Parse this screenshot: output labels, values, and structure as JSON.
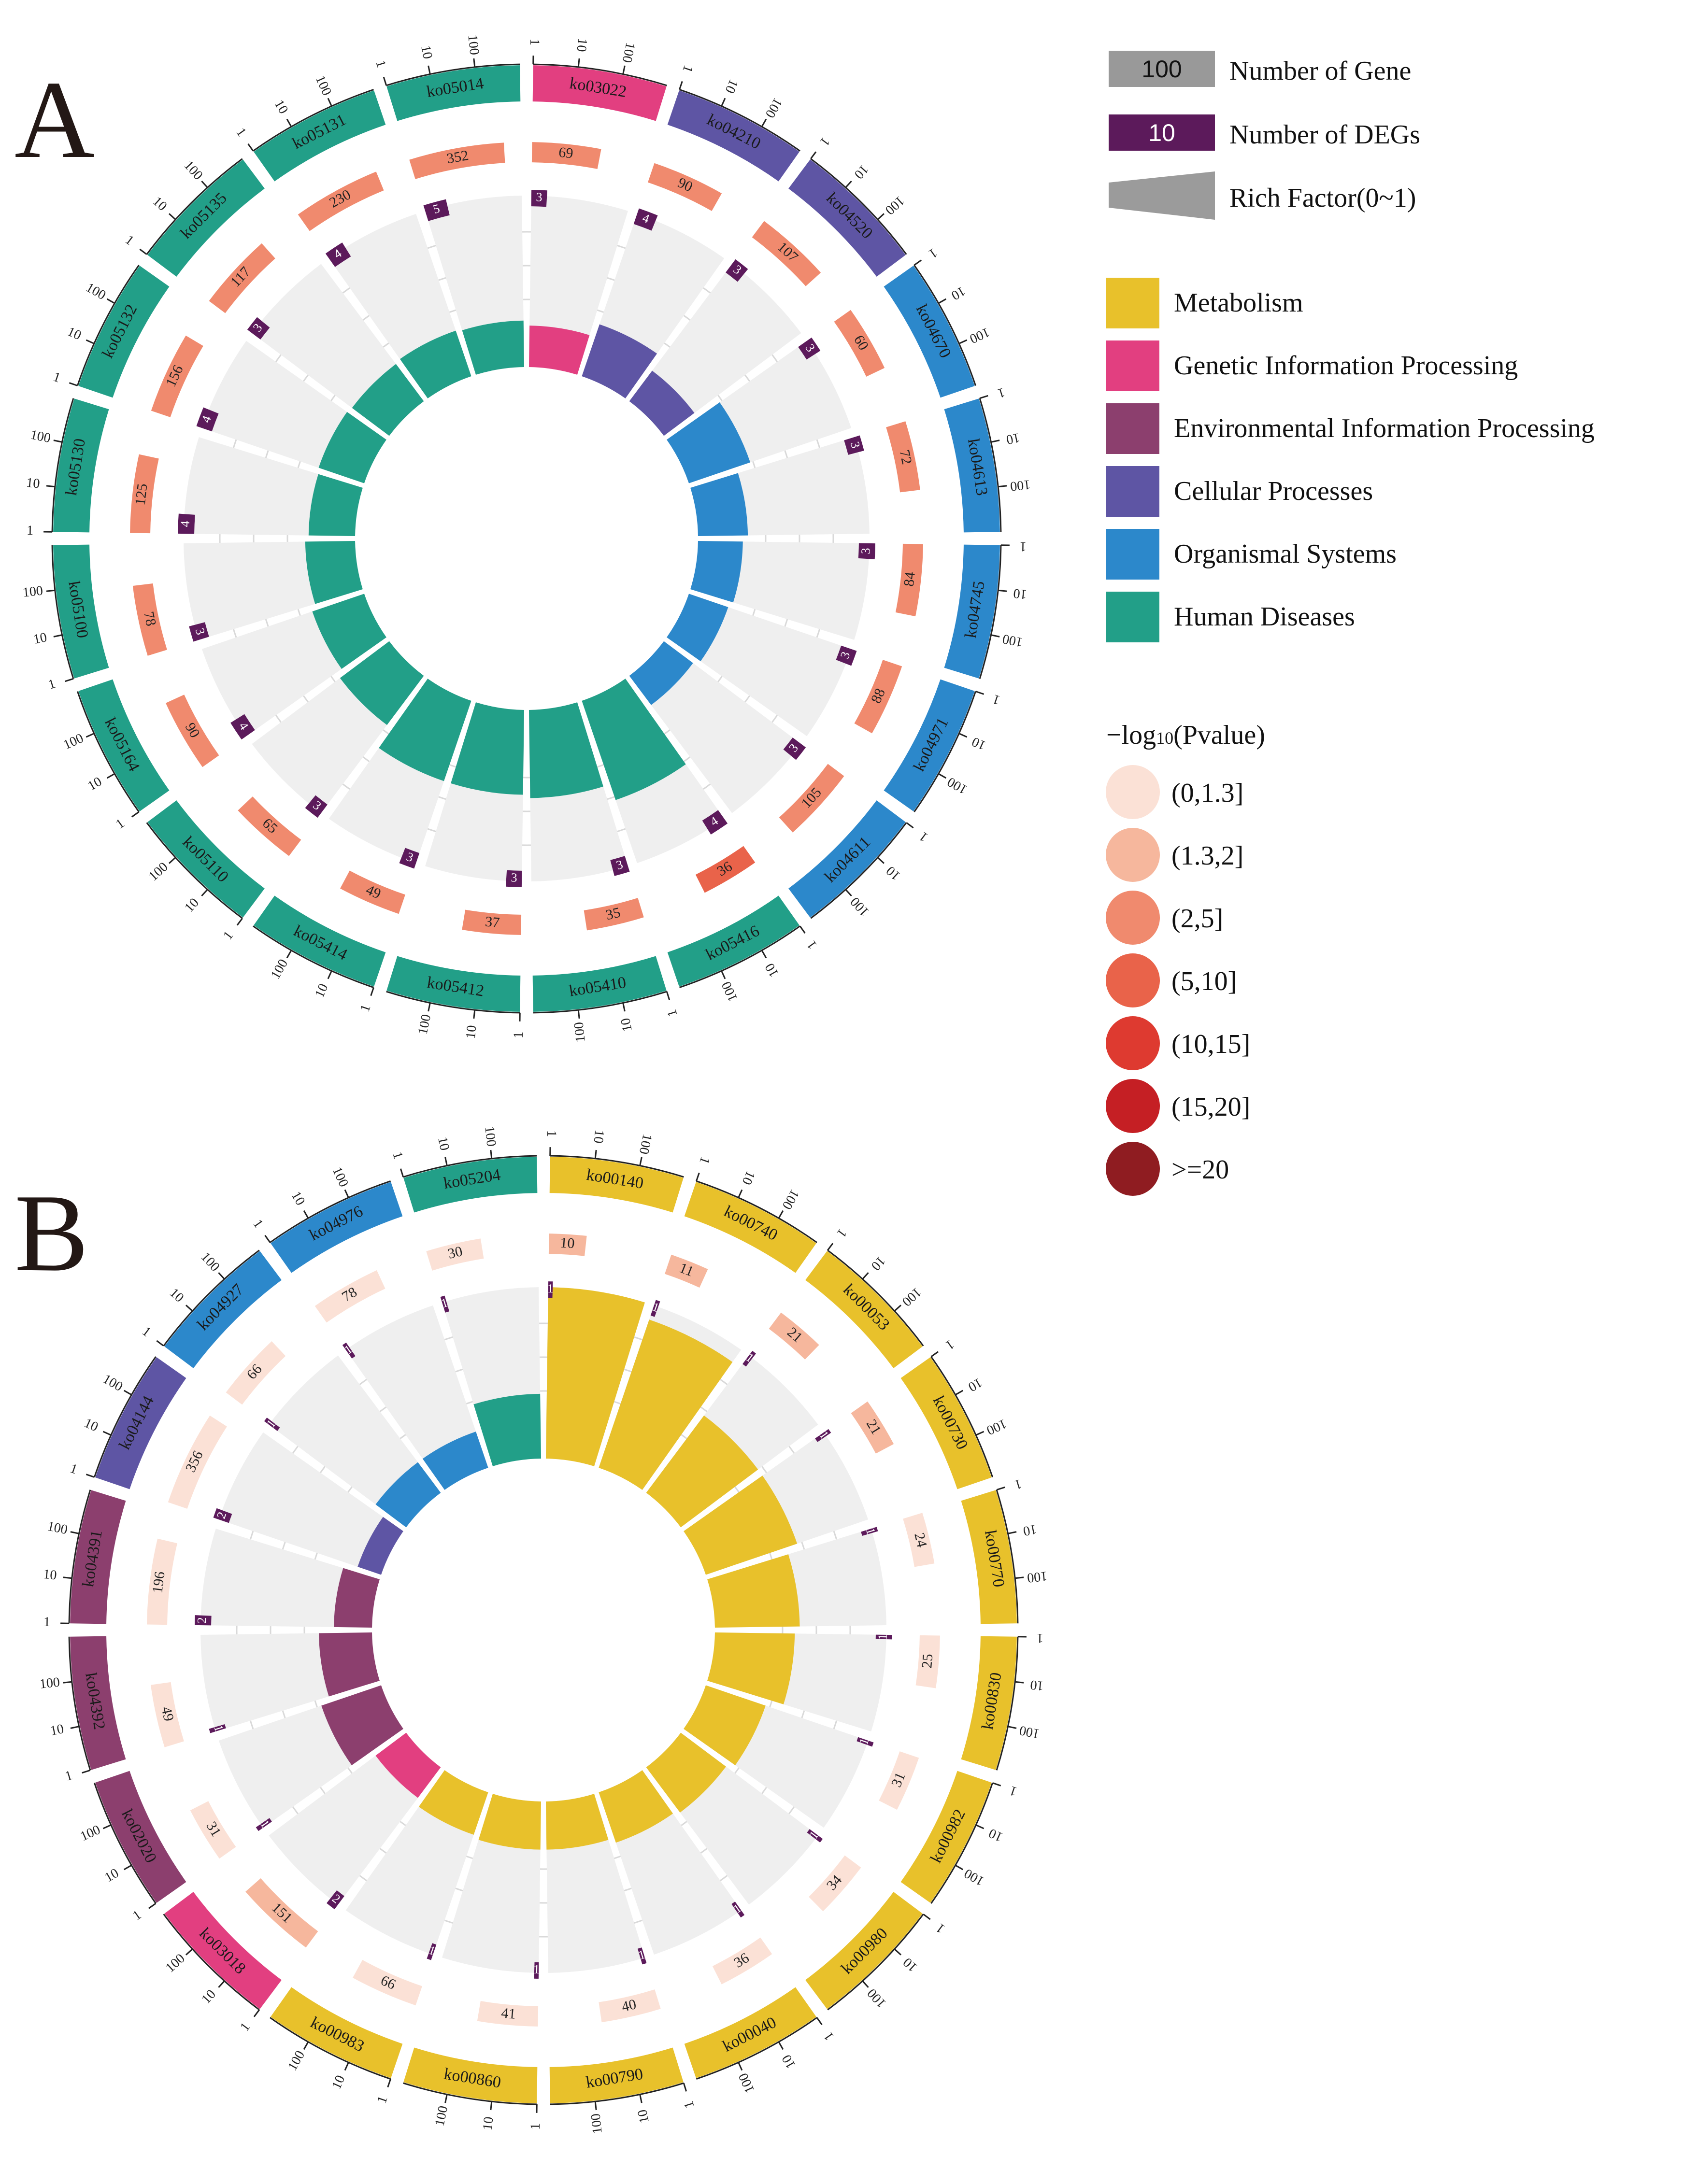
{
  "panels": [
    {
      "letter": "A",
      "chart_data": {
        "type": "circular-bar",
        "title": "",
        "tick_labels": [
          "1",
          "10",
          "100"
        ],
        "terms": [
          {
            "id": "ko03022",
            "category": "Genetic Information Processing",
            "genes": 69,
            "degs": 3,
            "rich_factor": 0.22,
            "pvalue_class": "(2,5]"
          },
          {
            "id": "ko04210",
            "category": "Cellular Processes",
            "genes": 90,
            "degs": 4,
            "rich_factor": 0.3,
            "pvalue_class": "(2,5]"
          },
          {
            "id": "ko04520",
            "category": "Cellular Processes",
            "genes": 107,
            "degs": 3,
            "rich_factor": 0.2,
            "pvalue_class": "(2,5]"
          },
          {
            "id": "ko04670",
            "category": "Organismal Systems",
            "genes": 60,
            "degs": 3,
            "rich_factor": 0.36,
            "pvalue_class": "(2,5]"
          },
          {
            "id": "ko04613",
            "category": "Organismal Systems",
            "genes": 72,
            "degs": 3,
            "rich_factor": 0.27,
            "pvalue_class": "(2,5]"
          },
          {
            "id": "ko04745",
            "category": "Organismal Systems",
            "genes": 84,
            "degs": 3,
            "rich_factor": 0.24,
            "pvalue_class": "(2,5]"
          },
          {
            "id": "ko04971",
            "category": "Organismal Systems",
            "genes": 88,
            "degs": 3,
            "rich_factor": 0.22,
            "pvalue_class": "(2,5]"
          },
          {
            "id": "ko04611",
            "category": "Organismal Systems",
            "genes": 105,
            "degs": 3,
            "rich_factor": 0.19,
            "pvalue_class": "(2,5]"
          },
          {
            "id": "ko05416",
            "category": "Human Diseases",
            "genes": 36,
            "degs": 4,
            "rich_factor": 0.6,
            "pvalue_class": "(5,10]"
          },
          {
            "id": "ko05410",
            "category": "Human Diseases",
            "genes": 35,
            "degs": 3,
            "rich_factor": 0.5,
            "pvalue_class": "(2,5]"
          },
          {
            "id": "ko05412",
            "category": "Human Diseases",
            "genes": 37,
            "degs": 3,
            "rich_factor": 0.48,
            "pvalue_class": "(2,5]"
          },
          {
            "id": "ko05414",
            "category": "Human Diseases",
            "genes": 49,
            "degs": 3,
            "rich_factor": 0.48,
            "pvalue_class": "(2,5]"
          },
          {
            "id": "ko05110",
            "category": "Human Diseases",
            "genes": 65,
            "degs": 3,
            "rich_factor": 0.34,
            "pvalue_class": "(2,5]"
          },
          {
            "id": "ko05164",
            "category": "Human Diseases",
            "genes": 90,
            "degs": 4,
            "rich_factor": 0.3,
            "pvalue_class": "(2,5]"
          },
          {
            "id": "ko05100",
            "category": "Human Diseases",
            "genes": 78,
            "degs": 3,
            "rich_factor": 0.27,
            "pvalue_class": "(2,5]"
          },
          {
            "id": "ko05130",
            "category": "Human Diseases",
            "genes": 125,
            "degs": 4,
            "rich_factor": 0.25,
            "pvalue_class": "(2,5]"
          },
          {
            "id": "ko05132",
            "category": "Human Diseases",
            "genes": 156,
            "degs": 4,
            "rich_factor": 0.26,
            "pvalue_class": "(2,5]"
          },
          {
            "id": "ko05135",
            "category": "Human Diseases",
            "genes": 117,
            "degs": 3,
            "rich_factor": 0.25,
            "pvalue_class": "(2,5]"
          },
          {
            "id": "ko05131",
            "category": "Human Diseases",
            "genes": 230,
            "degs": 4,
            "rich_factor": 0.26,
            "pvalue_class": "(2,5]"
          },
          {
            "id": "ko05014",
            "category": "Human Diseases",
            "genes": 352,
            "degs": 5,
            "rich_factor": 0.25,
            "pvalue_class": "(2,5]"
          }
        ]
      }
    },
    {
      "letter": "B",
      "chart_data": {
        "type": "circular-bar",
        "title": "",
        "tick_labels": [
          "1",
          "10",
          "100"
        ],
        "terms": [
          {
            "id": "ko00140",
            "category": "Metabolism",
            "genes": 10,
            "degs": 1,
            "rich_factor": 1.0,
            "pvalue_class": "(1.3,2]"
          },
          {
            "id": "ko00740",
            "category": "Metabolism",
            "genes": 11,
            "degs": 1,
            "rich_factor": 0.91,
            "pvalue_class": "(1.3,2]"
          },
          {
            "id": "ko00053",
            "category": "Metabolism",
            "genes": 21,
            "degs": 1,
            "rich_factor": 0.55,
            "pvalue_class": "(1.3,2]"
          },
          {
            "id": "ko00730",
            "category": "Metabolism",
            "genes": 21,
            "degs": 1,
            "rich_factor": 0.55,
            "pvalue_class": "(1.3,2]"
          },
          {
            "id": "ko00770",
            "category": "Metabolism",
            "genes": 24,
            "degs": 1,
            "rich_factor": 0.48,
            "pvalue_class": "(0,1.3]"
          },
          {
            "id": "ko00830",
            "category": "Metabolism",
            "genes": 25,
            "degs": 1,
            "rich_factor": 0.45,
            "pvalue_class": "(0,1.3]"
          },
          {
            "id": "ko00982",
            "category": "Metabolism",
            "genes": 31,
            "degs": 1,
            "rich_factor": 0.35,
            "pvalue_class": "(0,1.3]"
          },
          {
            "id": "ko00980",
            "category": "Metabolism",
            "genes": 34,
            "degs": 1,
            "rich_factor": 0.31,
            "pvalue_class": "(0,1.3]"
          },
          {
            "id": "ko00040",
            "category": "Metabolism",
            "genes": 36,
            "degs": 1,
            "rich_factor": 0.29,
            "pvalue_class": "(0,1.3]"
          },
          {
            "id": "ko00790",
            "category": "Metabolism",
            "genes": 40,
            "degs": 1,
            "rich_factor": 0.26,
            "pvalue_class": "(0,1.3]"
          },
          {
            "id": "ko00860",
            "category": "Metabolism",
            "genes": 41,
            "degs": 1,
            "rich_factor": 0.26,
            "pvalue_class": "(0,1.3]"
          },
          {
            "id": "ko00983",
            "category": "Metabolism",
            "genes": 66,
            "degs": 1,
            "rich_factor": 0.24,
            "pvalue_class": "(0,1.3]"
          },
          {
            "id": "ko03018",
            "category": "Genetic Information Processing",
            "genes": 151,
            "degs": 2,
            "rich_factor": 0.2,
            "pvalue_class": "(1.3,2]"
          },
          {
            "id": "ko02020",
            "category": "Environmental Information Processing",
            "genes": 31,
            "degs": 1,
            "rich_factor": 0.35,
            "pvalue_class": "(0,1.3]"
          },
          {
            "id": "ko04392",
            "category": "Environmental Information Processing",
            "genes": 49,
            "degs": 1,
            "rich_factor": 0.29,
            "pvalue_class": "(0,1.3]"
          },
          {
            "id": "ko04391",
            "category": "Environmental Information Processing",
            "genes": 196,
            "degs": 2,
            "rich_factor": 0.2,
            "pvalue_class": "(0,1.3]"
          },
          {
            "id": "ko04144",
            "category": "Cellular Processes",
            "genes": 356,
            "degs": 2,
            "rich_factor": 0.12,
            "pvalue_class": "(0,1.3]"
          },
          {
            "id": "ko04927",
            "category": "Organismal Systems",
            "genes": 66,
            "degs": 1,
            "rich_factor": 0.2,
            "pvalue_class": "(0,1.3]"
          },
          {
            "id": "ko04976",
            "category": "Organismal Systems",
            "genes": 78,
            "degs": 1,
            "rich_factor": 0.2,
            "pvalue_class": "(0,1.3]"
          },
          {
            "id": "ko05204",
            "category": "Human Diseases",
            "genes": 30,
            "degs": 1,
            "rich_factor": 0.36,
            "pvalue_class": "(0,1.3]"
          }
        ]
      }
    }
  ],
  "legend": {
    "gene_box": {
      "value": "100",
      "label": "Number of Gene"
    },
    "deg_box": {
      "value": "10",
      "label": "Number of DEGs"
    },
    "rich_factor": {
      "label": "Rich Factor(0~1)"
    },
    "categories": [
      {
        "name": "Metabolism",
        "color": "#E8C12B"
      },
      {
        "name": "Genetic Information Processing",
        "color": "#E23F80"
      },
      {
        "name": "Environmental Information Processing",
        "color": "#8C3F6E"
      },
      {
        "name": "Cellular Processes",
        "color": "#5E55A4"
      },
      {
        "name": "Organismal Systems",
        "color": "#2C88CB"
      },
      {
        "name": "Human Diseases",
        "color": "#229F88"
      }
    ],
    "pvalue_title_prefix": "−log",
    "pvalue_title_sub": "10",
    "pvalue_title_suffix": "(Pvalue)",
    "pvalue_classes": [
      {
        "label": "(0,1.3]",
        "color": "#FBE1D6"
      },
      {
        "label": "(1.3,2]",
        "color": "#F6B79D"
      },
      {
        "label": "(2,5]",
        "color": "#F08A6E"
      },
      {
        "label": "(5,10]",
        "color": "#E9634A"
      },
      {
        "label": "(10,15]",
        "color": "#DE3A30"
      },
      {
        "label": "(15,20]",
        "color": "#C51F24"
      },
      {
        "label": ">=20",
        "color": "#8F1C21"
      }
    ],
    "colors": {
      "gene_box": "#999999",
      "deg_box": "#5C1A5B",
      "rich_grey": "#9B9B9B",
      "track_bg": "#EFEFEF"
    }
  }
}
